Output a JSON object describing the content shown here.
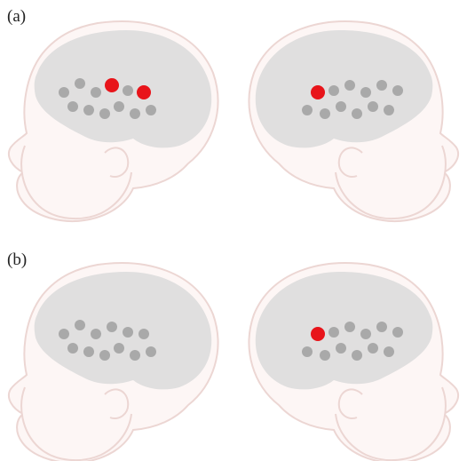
{
  "panels": [
    {
      "label": "(a)",
      "left_active": [
        3,
        5
      ],
      "right_active": [
        0
      ]
    },
    {
      "label": "(b)",
      "left_active": [],
      "right_active": [
        0
      ]
    }
  ],
  "colors": {
    "background": "#ffffff",
    "head_fill": "#fdf6f5",
    "head_outline": "#ecd6d3",
    "brain_fill": "#e0dfdf",
    "channel_inactive": "#a9a9a9",
    "channel_active": "#e8141a",
    "label": "#222222"
  },
  "channels_per_array": 12
}
